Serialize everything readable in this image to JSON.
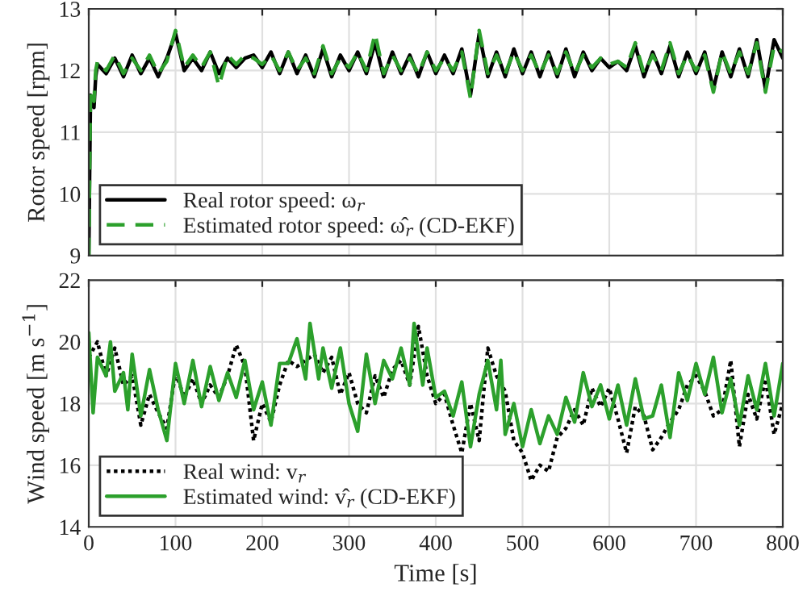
{
  "chart_data": [
    {
      "type": "line",
      "ylabel": "Rotor speed [rpm]",
      "xlim": [
        0,
        800
      ],
      "xticks": [
        0,
        100,
        200,
        300,
        400,
        500,
        600,
        700,
        800
      ],
      "ylim": [
        9,
        13
      ],
      "yticks": [
        9,
        10,
        11,
        12,
        13
      ],
      "grid": true,
      "legend": "bottom left",
      "tick_labels": "y",
      "series": [
        {
          "name": "Real rotor speed: ω$_{r}$",
          "color": "#000000",
          "line_style": "solid",
          "x": [
            0,
            2,
            4,
            6,
            8,
            10,
            20,
            30,
            40,
            50,
            60,
            70,
            80,
            90,
            100,
            110,
            120,
            130,
            140,
            150,
            160,
            170,
            180,
            190,
            200,
            210,
            220,
            230,
            240,
            250,
            260,
            270,
            280,
            290,
            300,
            310,
            320,
            330,
            340,
            350,
            360,
            370,
            380,
            390,
            400,
            410,
            420,
            430,
            440,
            450,
            460,
            470,
            480,
            490,
            500,
            510,
            520,
            530,
            540,
            550,
            560,
            570,
            580,
            590,
            600,
            610,
            620,
            630,
            640,
            650,
            660,
            670,
            680,
            690,
            700,
            710,
            720,
            730,
            740,
            750,
            760,
            770,
            780,
            790,
            800
          ],
          "values": [
            9,
            11.6,
            11.5,
            11.4,
            11.9,
            12.1,
            11.95,
            12.2,
            11.9,
            12.25,
            11.95,
            12.2,
            11.9,
            12.2,
            12.6,
            12.0,
            12.2,
            12.0,
            12.3,
            11.95,
            12.2,
            12.05,
            12.2,
            12.25,
            12.05,
            12.3,
            11.95,
            12.3,
            11.95,
            12.25,
            11.9,
            12.35,
            11.9,
            12.25,
            12.0,
            12.3,
            11.95,
            12.45,
            11.9,
            12.3,
            11.95,
            12.25,
            11.9,
            12.3,
            11.95,
            12.25,
            11.95,
            12.35,
            11.6,
            12.6,
            11.9,
            12.3,
            11.9,
            12.35,
            11.95,
            12.3,
            11.9,
            12.3,
            11.9,
            12.35,
            11.9,
            12.3,
            12.0,
            12.2,
            12.05,
            12.15,
            12.0,
            12.4,
            11.9,
            12.3,
            11.95,
            12.4,
            11.9,
            12.3,
            11.95,
            12.3,
            11.7,
            12.3,
            11.9,
            12.35,
            11.9,
            12.5,
            11.7,
            12.5,
            12.2
          ]
        },
        {
          "name": "Estimated rotor speed: ω̂$_{r}$ (CD-EKF)",
          "color": "#2ca02c",
          "line_style": "dashed",
          "x": [
            0,
            2,
            4,
            6,
            8,
            10,
            20,
            30,
            40,
            50,
            60,
            70,
            80,
            90,
            100,
            110,
            120,
            130,
            140,
            150,
            160,
            170,
            180,
            190,
            200,
            210,
            220,
            230,
            240,
            250,
            260,
            270,
            280,
            290,
            300,
            310,
            320,
            330,
            340,
            350,
            360,
            370,
            380,
            390,
            400,
            410,
            420,
            430,
            440,
            450,
            460,
            470,
            480,
            490,
            500,
            510,
            520,
            530,
            540,
            550,
            560,
            570,
            580,
            590,
            600,
            610,
            620,
            630,
            640,
            650,
            660,
            670,
            680,
            690,
            700,
            710,
            720,
            730,
            740,
            750,
            760,
            770,
            780,
            790,
            800
          ],
          "values": [
            9,
            11.7,
            11.6,
            11.5,
            12.0,
            12.15,
            12.0,
            12.25,
            11.95,
            12.2,
            12.0,
            12.25,
            11.95,
            12.15,
            12.65,
            12.05,
            12.25,
            12.05,
            12.3,
            11.75,
            12.25,
            12.1,
            12.25,
            12.2,
            12.1,
            12.25,
            12.0,
            12.3,
            12.0,
            12.2,
            11.95,
            12.4,
            11.95,
            12.2,
            12.05,
            12.3,
            12.0,
            12.6,
            11.95,
            12.25,
            12.0,
            12.2,
            11.95,
            12.3,
            12.0,
            12.2,
            12.0,
            12.3,
            11.55,
            12.65,
            11.95,
            12.25,
            11.95,
            12.3,
            12.0,
            12.25,
            11.95,
            12.25,
            11.95,
            12.3,
            11.95,
            12.25,
            12.05,
            12.2,
            12.1,
            12.15,
            12.05,
            12.45,
            11.95,
            12.25,
            12.0,
            12.45,
            11.95,
            12.25,
            12.0,
            12.25,
            11.65,
            12.3,
            11.95,
            12.3,
            11.95,
            12.45,
            11.65,
            12.4,
            12.3
          ]
        }
      ]
    },
    {
      "type": "line",
      "xlabel": "Time [s]",
      "ylabel": "Wind speed [m s$^{−1}$]",
      "xlim": [
        0,
        800
      ],
      "xticks": [
        0,
        100,
        200,
        300,
        400,
        500,
        600,
        700,
        800
      ],
      "ylim": [
        14,
        22
      ],
      "yticks": [
        14,
        16,
        18,
        20,
        22
      ],
      "grid": true,
      "legend": "bottom left",
      "series": [
        {
          "name": "Real wind: v$_{r}$",
          "color": "#000000",
          "line_style": "dotted",
          "x": [
            0,
            10,
            20,
            30,
            40,
            50,
            60,
            70,
            80,
            90,
            100,
            110,
            120,
            130,
            140,
            150,
            160,
            170,
            180,
            190,
            200,
            210,
            220,
            230,
            240,
            250,
            260,
            270,
            280,
            290,
            300,
            310,
            320,
            330,
            340,
            350,
            360,
            370,
            380,
            390,
            400,
            410,
            420,
            430,
            440,
            450,
            460,
            470,
            480,
            490,
            500,
            510,
            520,
            530,
            540,
            550,
            560,
            570,
            580,
            590,
            600,
            610,
            620,
            630,
            640,
            650,
            660,
            670,
            680,
            690,
            700,
            710,
            720,
            730,
            740,
            750,
            760,
            770,
            780,
            790,
            800
          ],
          "values": [
            19.5,
            20.0,
            18.9,
            19.8,
            18.6,
            18.9,
            17.3,
            18.3,
            17.7,
            17.2,
            19.0,
            18.2,
            18.8,
            18.0,
            18.6,
            18.2,
            18.9,
            19.9,
            19.2,
            16.8,
            18.0,
            17.4,
            18.6,
            19.4,
            19.2,
            19.4,
            19.6,
            19.0,
            19.5,
            18.3,
            19.0,
            18.0,
            17.7,
            18.9,
            18.2,
            19.1,
            19.4,
            18.6,
            20.5,
            18.9,
            18.0,
            18.3,
            17.3,
            16.4,
            18.0,
            16.8,
            19.8,
            18.9,
            18.4,
            16.8,
            16.4,
            15.5,
            16.0,
            15.8,
            16.9,
            17.2,
            17.8,
            17.3,
            18.5,
            17.9,
            18.5,
            17.5,
            16.4,
            17.9,
            17.6,
            16.5,
            16.9,
            17.4,
            17.8,
            18.6,
            18.9,
            18.4,
            17.6,
            17.8,
            19.4,
            16.6,
            18.3,
            17.5,
            18.8,
            17.0,
            18.0
          ]
        },
        {
          "name": "Estimated wind: v̂$_{r}$ (CD-EKF)",
          "color": "#2ca02c",
          "line_style": "solid",
          "x": [
            0,
            5,
            10,
            20,
            25,
            30,
            40,
            45,
            50,
            60,
            70,
            80,
            90,
            100,
            110,
            120,
            130,
            140,
            150,
            160,
            170,
            180,
            190,
            200,
            210,
            220,
            230,
            240,
            250,
            255,
            265,
            270,
            280,
            290,
            300,
            310,
            320,
            330,
            340,
            350,
            360,
            370,
            375,
            385,
            390,
            400,
            410,
            420,
            430,
            440,
            450,
            460,
            470,
            475,
            480,
            490,
            500,
            510,
            520,
            530,
            540,
            550,
            560,
            570,
            580,
            590,
            600,
            610,
            620,
            630,
            640,
            650,
            660,
            670,
            680,
            690,
            700,
            710,
            720,
            730,
            740,
            750,
            760,
            770,
            780,
            790,
            800
          ],
          "values": [
            20.3,
            17.7,
            19.5,
            18.9,
            20.0,
            18.4,
            19.0,
            17.8,
            19.6,
            17.6,
            19.1,
            17.8,
            16.8,
            19.3,
            18.0,
            19.4,
            17.9,
            19.2,
            18.1,
            19.0,
            18.2,
            19.4,
            17.8,
            18.7,
            17.3,
            19.3,
            19.3,
            20.1,
            18.8,
            20.6,
            18.8,
            19.8,
            18.5,
            19.8,
            18.0,
            17.1,
            19.6,
            18.0,
            19.4,
            18.8,
            19.8,
            18.6,
            20.6,
            18.6,
            19.8,
            18.2,
            18.4,
            17.6,
            18.7,
            16.6,
            18.3,
            19.4,
            17.8,
            19.4,
            17.0,
            18.0,
            16.6,
            17.8,
            16.7,
            17.6,
            17.0,
            18.2,
            17.4,
            19.0,
            17.9,
            18.6,
            17.5,
            18.6,
            17.3,
            18.8,
            17.5,
            17.6,
            18.6,
            16.9,
            19.0,
            18.1,
            19.3,
            18.3,
            19.5,
            17.7,
            18.8,
            17.3,
            18.9,
            17.8,
            19.3,
            17.6,
            19.3
          ]
        }
      ]
    }
  ]
}
